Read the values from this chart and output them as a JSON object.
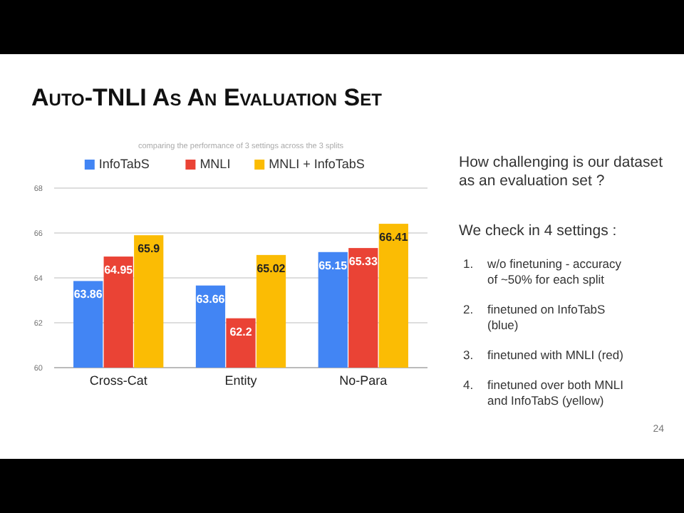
{
  "chart_data": {
    "type": "bar",
    "title": "Auto-TNLI As An Evaluation Set",
    "subtitle": "comparing the performance of 3 settings across the 3 splits",
    "categories": [
      "Cross-Cat",
      "Entity",
      "No-Para"
    ],
    "series": [
      {
        "name": "InfoTabS",
        "color": "#4285f4",
        "values": [
          63.86,
          63.66,
          65.15
        ]
      },
      {
        "name": "MNLI",
        "color": "#ea4335",
        "values": [
          64.95,
          62.2,
          65.33
        ]
      },
      {
        "name": "MNLI + InfoTabS",
        "color": "#fbbc04",
        "values": [
          65.9,
          65.02,
          66.41
        ]
      }
    ],
    "ylim": [
      60,
      68
    ],
    "yticks": [
      60,
      62,
      64,
      66,
      68
    ],
    "grid": true,
    "legend": "top",
    "data_labels": true,
    "annotations": [
      "How challenging is our dataset as an evaluation set ?",
      "We check in 4 settings :",
      "1. w/o finetuning - accuracy of ~50% for each split",
      "2. finetuned on InfoTabS (blue)",
      "3. finetuned with MNLI (red)",
      "4. finetuned over both MNLI and InfoTabS (yellow)",
      "24"
    ]
  }
}
